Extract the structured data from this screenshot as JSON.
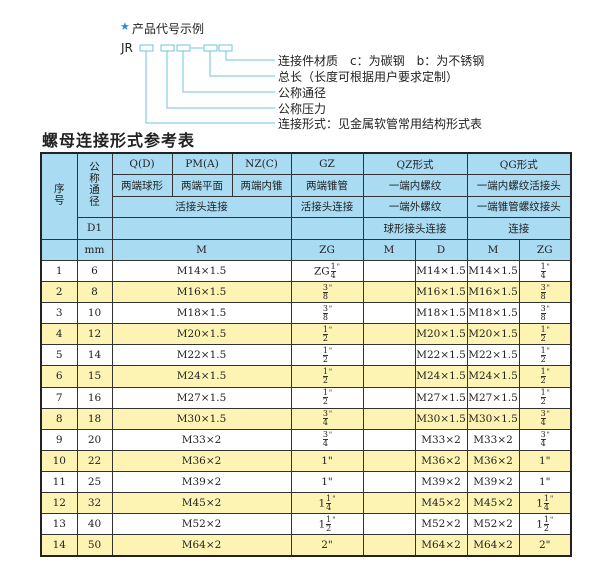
{
  "example": {
    "star_color": "#2a8fd0",
    "heading": "产品代号示例",
    "code_prefix": "JR",
    "dash": "-",
    "labels": [
      "连接件材质　c：为碳钢　b：为不锈钢",
      "总长（长度可根据用户要求定制）",
      "公称通径",
      "公称压力",
      "连接形式：见金属软管常用结构形式表"
    ]
  },
  "title": "螺母连接形式参考表",
  "header": {
    "seq": "序号",
    "nominal": "公称通径",
    "d1": "D1",
    "mm": "mm",
    "types": [
      "Q(D)",
      "PM(A)",
      "NZ(C)",
      "GZ",
      "QZ形式",
      "QG形式"
    ],
    "shapes": [
      "两端球形",
      "两端平面",
      "两端内锥",
      "两端锥管",
      "一端内螺纹",
      "一端内螺纹活接头"
    ],
    "conn1": "活接头连接",
    "conn2": "活接头连接",
    "qz_conn": "一端外螺纹",
    "qg_conn": "一端锥管螺纹接头",
    "qz_conn2": "球形接头连接",
    "qg_conn2": "连接",
    "units": [
      "M",
      "ZG",
      "M",
      "D",
      "M",
      "ZG"
    ]
  },
  "colors": {
    "header_bg": "#a9dbf3",
    "alt_row_bg": "#fdf4b4"
  },
  "rows": [
    {
      "no": "1",
      "dn": "6",
      "m": "M14×1.5",
      "zg": {
        "pre": "ZG",
        "w": "",
        "n": "1",
        "d": "4",
        "q": "\""
      },
      "qzm": "",
      "qzd": "M14×1.5",
      "qgm": "M14×1.5",
      "qgzg": {
        "pre": "",
        "w": "",
        "n": "1",
        "d": "4",
        "q": "\""
      }
    },
    {
      "no": "2",
      "dn": "8",
      "m": "M16×1.5",
      "zg": {
        "pre": "",
        "w": "",
        "n": "3",
        "d": "8",
        "q": "\""
      },
      "qzm": "",
      "qzd": "M16×1.5",
      "qgm": "M16×1.5",
      "qgzg": {
        "pre": "",
        "w": "",
        "n": "3",
        "d": "8",
        "q": "\""
      }
    },
    {
      "no": "3",
      "dn": "10",
      "m": "M18×1.5",
      "zg": {
        "pre": "",
        "w": "",
        "n": "3",
        "d": "8",
        "q": "\""
      },
      "qzm": "",
      "qzd": "M18×1.5",
      "qgm": "M18×1.5",
      "qgzg": {
        "pre": "",
        "w": "",
        "n": "3",
        "d": "8",
        "q": "\""
      }
    },
    {
      "no": "4",
      "dn": "12",
      "m": "M20×1.5",
      "zg": {
        "pre": "",
        "w": "",
        "n": "1",
        "d": "2",
        "q": "\""
      },
      "qzm": "",
      "qzd": "M20×1.5",
      "qgm": "M20×1.5",
      "qgzg": {
        "pre": "",
        "w": "",
        "n": "1",
        "d": "2",
        "q": "\""
      }
    },
    {
      "no": "5",
      "dn": "14",
      "m": "M22×1.5",
      "zg": {
        "pre": "",
        "w": "",
        "n": "1",
        "d": "2",
        "q": "\""
      },
      "qzm": "",
      "qzd": "M22×1.5",
      "qgm": "M22×1.5",
      "qgzg": {
        "pre": "",
        "w": "",
        "n": "1",
        "d": "2",
        "q": "\""
      }
    },
    {
      "no": "6",
      "dn": "15",
      "m": "M24×1.5",
      "zg": {
        "pre": "",
        "w": "",
        "n": "1",
        "d": "2",
        "q": "\""
      },
      "qzm": "",
      "qzd": "M24×1.5",
      "qgm": "M24×1.5",
      "qgzg": {
        "pre": "",
        "w": "",
        "n": "1",
        "d": "2",
        "q": "\""
      }
    },
    {
      "no": "7",
      "dn": "16",
      "m": "M27×1.5",
      "zg": {
        "pre": "",
        "w": "",
        "n": "1",
        "d": "2",
        "q": "\""
      },
      "qzm": "",
      "qzd": "M27×1.5",
      "qgm": "M27×1.5",
      "qgzg": {
        "pre": "",
        "w": "",
        "n": "1",
        "d": "2",
        "q": "\""
      }
    },
    {
      "no": "8",
      "dn": "18",
      "m": "M30×1.5",
      "zg": {
        "pre": "",
        "w": "",
        "n": "3",
        "d": "4",
        "q": "\""
      },
      "qzm": "",
      "qzd": "M30×1.5",
      "qgm": "M30×1.5",
      "qgzg": {
        "pre": "",
        "w": "",
        "n": "3",
        "d": "4",
        "q": "\""
      }
    },
    {
      "no": "9",
      "dn": "20",
      "m": "M33×2",
      "zg": {
        "pre": "",
        "w": "",
        "n": "3",
        "d": "4",
        "q": "\""
      },
      "qzm": "",
      "qzd": "M33×2",
      "qgm": "M33×2",
      "qgzg": {
        "pre": "",
        "w": "",
        "n": "3",
        "d": "4",
        "q": "\""
      }
    },
    {
      "no": "10",
      "dn": "22",
      "m": "M36×2",
      "zg": {
        "pre": "",
        "w": "1\"",
        "n": "",
        "d": "",
        "q": ""
      },
      "qzm": "",
      "qzd": "M36×2",
      "qgm": "M36×2",
      "qgzg": {
        "pre": "",
        "w": "1\"",
        "n": "",
        "d": "",
        "q": ""
      }
    },
    {
      "no": "11",
      "dn": "25",
      "m": "M39×2",
      "zg": {
        "pre": "",
        "w": "1\"",
        "n": "",
        "d": "",
        "q": ""
      },
      "qzm": "",
      "qzd": "M39×2",
      "qgm": "M39×2",
      "qgzg": {
        "pre": "",
        "w": "1\"",
        "n": "",
        "d": "",
        "q": ""
      }
    },
    {
      "no": "12",
      "dn": "32",
      "m": "M45×2",
      "zg": {
        "pre": "",
        "w": "1",
        "n": "1",
        "d": "4",
        "q": "\""
      },
      "qzm": "",
      "qzd": "M45×2",
      "qgm": "M45×2",
      "qgzg": {
        "pre": "",
        "w": "1",
        "n": "1",
        "d": "4",
        "q": "\""
      }
    },
    {
      "no": "13",
      "dn": "40",
      "m": "M52×2",
      "zg": {
        "pre": "",
        "w": "1",
        "n": "1",
        "d": "2",
        "q": "\""
      },
      "qzm": "",
      "qzd": "M52×2",
      "qgm": "M52×2",
      "qgzg": {
        "pre": "",
        "w": "1",
        "n": "1",
        "d": "2",
        "q": "\""
      }
    },
    {
      "no": "14",
      "dn": "50",
      "m": "M64×2",
      "zg": {
        "pre": "",
        "w": "2\"",
        "n": "",
        "d": "",
        "q": ""
      },
      "qzm": "",
      "qzd": "M64×2",
      "qgm": "M64×2",
      "qgzg": {
        "pre": "",
        "w": "2\"",
        "n": "",
        "d": "",
        "q": ""
      }
    }
  ]
}
